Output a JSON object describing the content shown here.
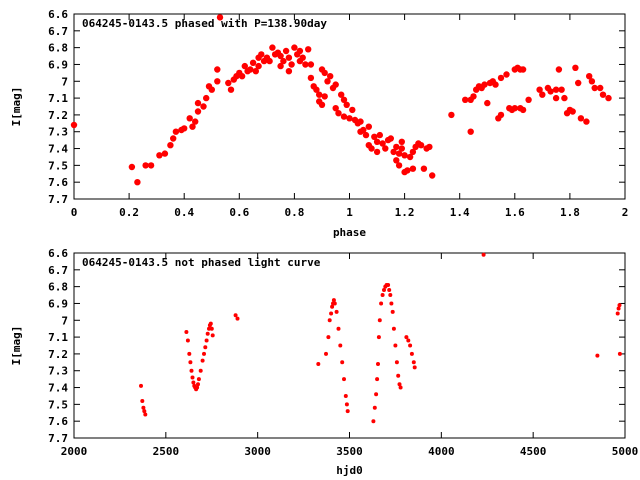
{
  "chart_data": [
    {
      "type": "scatter",
      "title": "064245-0143.5 phased with P=138.90day",
      "xlabel": "phase",
      "ylabel": "I[mag]",
      "xlim": [
        0,
        2
      ],
      "ylim": [
        7.7,
        6.6
      ],
      "y_inverted": true,
      "xticks": [
        "0",
        "0.2",
        "0.4",
        "0.6",
        "0.8",
        "1",
        "1.2",
        "1.4",
        "1.6",
        "1.8",
        "2"
      ],
      "yticks": [
        "6.6",
        "6.7",
        "6.8",
        "6.9",
        "7",
        "7.1",
        "7.2",
        "7.3",
        "7.4",
        "7.5",
        "7.6",
        "7.7"
      ],
      "marker": "filled circle",
      "grid": false,
      "series": [
        {
          "color": "#ff0000",
          "points": [
            [
              0.0,
              7.26
            ],
            [
              0.21,
              7.51
            ],
            [
              0.23,
              7.6
            ],
            [
              0.26,
              7.5
            ],
            [
              0.28,
              7.5
            ],
            [
              0.31,
              7.44
            ],
            [
              0.33,
              7.43
            ],
            [
              0.35,
              7.38
            ],
            [
              0.36,
              7.34
            ],
            [
              0.37,
              7.3
            ],
            [
              0.39,
              7.29
            ],
            [
              0.4,
              7.28
            ],
            [
              0.42,
              7.22
            ],
            [
              0.43,
              7.27
            ],
            [
              0.44,
              7.24
            ],
            [
              0.45,
              7.18
            ],
            [
              0.45,
              7.13
            ],
            [
              0.47,
              7.15
            ],
            [
              0.48,
              7.1
            ],
            [
              0.49,
              7.03
            ],
            [
              0.5,
              7.05
            ],
            [
              0.52,
              6.93
            ],
            [
              0.52,
              7.0
            ],
            [
              0.53,
              6.62
            ],
            [
              0.56,
              7.01
            ],
            [
              0.57,
              7.05
            ],
            [
              0.58,
              6.99
            ],
            [
              0.59,
              6.97
            ],
            [
              0.6,
              6.95
            ],
            [
              0.61,
              6.97
            ],
            [
              0.62,
              6.91
            ],
            [
              0.63,
              6.94
            ],
            [
              0.64,
              6.93
            ],
            [
              0.65,
              6.89
            ],
            [
              0.66,
              6.94
            ],
            [
              0.67,
              6.86
            ],
            [
              0.67,
              6.91
            ],
            [
              0.68,
              6.84
            ],
            [
              0.69,
              6.88
            ],
            [
              0.7,
              6.86
            ],
            [
              0.71,
              6.88
            ],
            [
              0.72,
              6.8
            ],
            [
              0.73,
              6.84
            ],
            [
              0.74,
              6.83
            ],
            [
              0.75,
              6.85
            ],
            [
              0.75,
              6.91
            ],
            [
              0.76,
              6.88
            ],
            [
              0.77,
              6.82
            ],
            [
              0.78,
              6.86
            ],
            [
              0.78,
              6.94
            ],
            [
              0.79,
              6.9
            ],
            [
              0.8,
              6.8
            ],
            [
              0.81,
              6.84
            ],
            [
              0.82,
              6.82
            ],
            [
              0.82,
              6.88
            ],
            [
              0.83,
              6.86
            ],
            [
              0.84,
              6.9
            ],
            [
              0.85,
              6.81
            ],
            [
              0.86,
              6.9
            ],
            [
              0.86,
              6.98
            ],
            [
              0.87,
              7.03
            ],
            [
              0.88,
              7.05
            ],
            [
              0.89,
              7.08
            ],
            [
              0.89,
              7.12
            ],
            [
              0.9,
              7.14
            ],
            [
              0.91,
              7.09
            ],
            [
              0.9,
              6.93
            ],
            [
              0.91,
              6.95
            ],
            [
              0.92,
              7.0
            ],
            [
              0.93,
              6.97
            ],
            [
              0.94,
              7.04
            ],
            [
              0.95,
              7.02
            ],
            [
              0.95,
              7.16
            ],
            [
              0.96,
              7.19
            ],
            [
              0.97,
              7.08
            ],
            [
              0.98,
              7.21
            ],
            [
              0.98,
              7.11
            ],
            [
              0.99,
              7.14
            ],
            [
              1.0,
              7.22
            ],
            [
              1.01,
              7.17
            ],
            [
              1.02,
              7.23
            ],
            [
              1.03,
              7.25
            ],
            [
              1.04,
              7.24
            ],
            [
              1.04,
              7.3
            ],
            [
              1.05,
              7.29
            ],
            [
              1.06,
              7.32
            ],
            [
              1.07,
              7.27
            ],
            [
              1.07,
              7.38
            ],
            [
              1.08,
              7.4
            ],
            [
              1.09,
              7.33
            ],
            [
              1.1,
              7.36
            ],
            [
              1.1,
              7.42
            ],
            [
              1.11,
              7.32
            ],
            [
              1.12,
              7.37
            ],
            [
              1.13,
              7.4
            ],
            [
              1.14,
              7.35
            ],
            [
              1.15,
              7.34
            ],
            [
              1.16,
              7.42
            ],
            [
              1.17,
              7.39
            ],
            [
              1.17,
              7.47
            ],
            [
              1.18,
              7.5
            ],
            [
              1.18,
              7.43
            ],
            [
              1.19,
              7.36
            ],
            [
              1.19,
              7.4
            ],
            [
              1.2,
              7.44
            ],
            [
              1.2,
              7.54
            ],
            [
              1.21,
              7.53
            ],
            [
              1.22,
              7.45
            ],
            [
              1.23,
              7.52
            ],
            [
              1.23,
              7.42
            ],
            [
              1.24,
              7.39
            ],
            [
              1.25,
              7.37
            ],
            [
              1.26,
              7.38
            ],
            [
              1.27,
              7.52
            ],
            [
              1.28,
              7.4
            ],
            [
              1.29,
              7.39
            ],
            [
              1.3,
              7.56
            ],
            [
              1.37,
              7.2
            ],
            [
              1.42,
              7.11
            ],
            [
              1.44,
              7.11
            ],
            [
              1.44,
              7.3
            ],
            [
              1.45,
              7.09
            ],
            [
              1.46,
              7.05
            ],
            [
              1.47,
              7.03
            ],
            [
              1.48,
              7.04
            ],
            [
              1.49,
              7.02
            ],
            [
              1.5,
              7.13
            ],
            [
              1.51,
              7.01
            ],
            [
              1.52,
              7.0
            ],
            [
              1.53,
              7.02
            ],
            [
              1.54,
              7.22
            ],
            [
              1.55,
              7.2
            ],
            [
              1.55,
              6.98
            ],
            [
              1.57,
              6.96
            ],
            [
              1.58,
              7.16
            ],
            [
              1.59,
              7.17
            ],
            [
              1.6,
              6.93
            ],
            [
              1.6,
              7.16
            ],
            [
              1.61,
              6.92
            ],
            [
              1.62,
              6.93
            ],
            [
              1.62,
              7.16
            ],
            [
              1.63,
              6.93
            ],
            [
              1.63,
              7.17
            ],
            [
              1.65,
              7.11
            ],
            [
              1.69,
              7.05
            ],
            [
              1.7,
              7.08
            ],
            [
              1.72,
              7.04
            ],
            [
              1.73,
              7.06
            ],
            [
              1.75,
              7.05
            ],
            [
              1.75,
              7.1
            ],
            [
              1.76,
              6.93
            ],
            [
              1.77,
              7.05
            ],
            [
              1.78,
              7.1
            ],
            [
              1.79,
              7.19
            ],
            [
              1.8,
              7.17
            ],
            [
              1.81,
              7.18
            ],
            [
              1.82,
              6.92
            ],
            [
              1.83,
              7.01
            ],
            [
              1.84,
              7.22
            ],
            [
              1.86,
              7.24
            ],
            [
              1.87,
              6.97
            ],
            [
              1.88,
              7.0
            ],
            [
              1.89,
              7.04
            ],
            [
              1.91,
              7.04
            ],
            [
              1.92,
              7.08
            ],
            [
              1.94,
              7.1
            ]
          ]
        }
      ]
    },
    {
      "type": "scatter",
      "title": "064245-0143.5 not phased light curve",
      "xlabel": "hjd0",
      "ylabel": "I[mag]",
      "xlim": [
        2000,
        5000
      ],
      "ylim": [
        7.7,
        6.6
      ],
      "y_inverted": true,
      "xticks": [
        "2000",
        "2500",
        "3000",
        "3500",
        "4000",
        "4500",
        "5000"
      ],
      "yticks": [
        "6.6",
        "6.7",
        "6.8",
        "6.9",
        "7",
        "7.1",
        "7.2",
        "7.3",
        "7.4",
        "7.5",
        "7.6",
        "7.7"
      ],
      "marker": "filled circle",
      "grid": false,
      "series": [
        {
          "color": "#ff0000",
          "points": [
            [
              2365,
              7.39
            ],
            [
              2372,
              7.48
            ],
            [
              2378,
              7.52
            ],
            [
              2383,
              7.54
            ],
            [
              2388,
              7.56
            ],
            [
              2612,
              7.07
            ],
            [
              2620,
              7.12
            ],
            [
              2628,
              7.2
            ],
            [
              2634,
              7.25
            ],
            [
              2640,
              7.3
            ],
            [
              2645,
              7.34
            ],
            [
              2650,
              7.37
            ],
            [
              2655,
              7.39
            ],
            [
              2660,
              7.4
            ],
            [
              2665,
              7.41
            ],
            [
              2670,
              7.4
            ],
            [
              2675,
              7.38
            ],
            [
              2680,
              7.35
            ],
            [
              2690,
              7.3
            ],
            [
              2700,
              7.24
            ],
            [
              2708,
              7.2
            ],
            [
              2715,
              7.16
            ],
            [
              2722,
              7.12
            ],
            [
              2728,
              7.08
            ],
            [
              2735,
              7.05
            ],
            [
              2740,
              7.03
            ],
            [
              2745,
              7.02
            ],
            [
              2750,
              7.05
            ],
            [
              2755,
              7.09
            ],
            [
              2880,
              6.97
            ],
            [
              2890,
              6.99
            ],
            [
              3330,
              7.26
            ],
            [
              3372,
              7.2
            ],
            [
              3385,
              7.1
            ],
            [
              3392,
              7.0
            ],
            [
              3400,
              6.96
            ],
            [
              3405,
              6.92
            ],
            [
              3410,
              6.9
            ],
            [
              3415,
              6.88
            ],
            [
              3420,
              6.9
            ],
            [
              3430,
              6.95
            ],
            [
              3440,
              7.05
            ],
            [
              3450,
              7.15
            ],
            [
              3460,
              7.25
            ],
            [
              3470,
              7.35
            ],
            [
              3480,
              7.45
            ],
            [
              3486,
              7.5
            ],
            [
              3490,
              7.54
            ],
            [
              3630,
              7.6
            ],
            [
              3638,
              7.52
            ],
            [
              3645,
              7.44
            ],
            [
              3650,
              7.35
            ],
            [
              3655,
              7.26
            ],
            [
              3660,
              7.1
            ],
            [
              3665,
              7.0
            ],
            [
              3672,
              6.9
            ],
            [
              3680,
              6.85
            ],
            [
              3688,
              6.82
            ],
            [
              3695,
              6.8
            ],
            [
              3702,
              6.79
            ],
            [
              3710,
              6.79
            ],
            [
              3716,
              6.82
            ],
            [
              3722,
              6.85
            ],
            [
              3728,
              6.9
            ],
            [
              3735,
              6.95
            ],
            [
              3742,
              7.05
            ],
            [
              3750,
              7.15
            ],
            [
              3758,
              7.25
            ],
            [
              3765,
              7.33
            ],
            [
              3772,
              7.38
            ],
            [
              3778,
              7.4
            ],
            [
              3810,
              7.1
            ],
            [
              3820,
              7.12
            ],
            [
              3830,
              7.15
            ],
            [
              3840,
              7.2
            ],
            [
              3850,
              7.25
            ],
            [
              3855,
              7.28
            ],
            [
              4230,
              6.61
            ],
            [
              4850,
              7.21
            ],
            [
              4960,
              6.96
            ],
            [
              4965,
              6.93
            ],
            [
              4970,
              6.91
            ],
            [
              4972,
              7.2
            ]
          ]
        }
      ]
    }
  ]
}
